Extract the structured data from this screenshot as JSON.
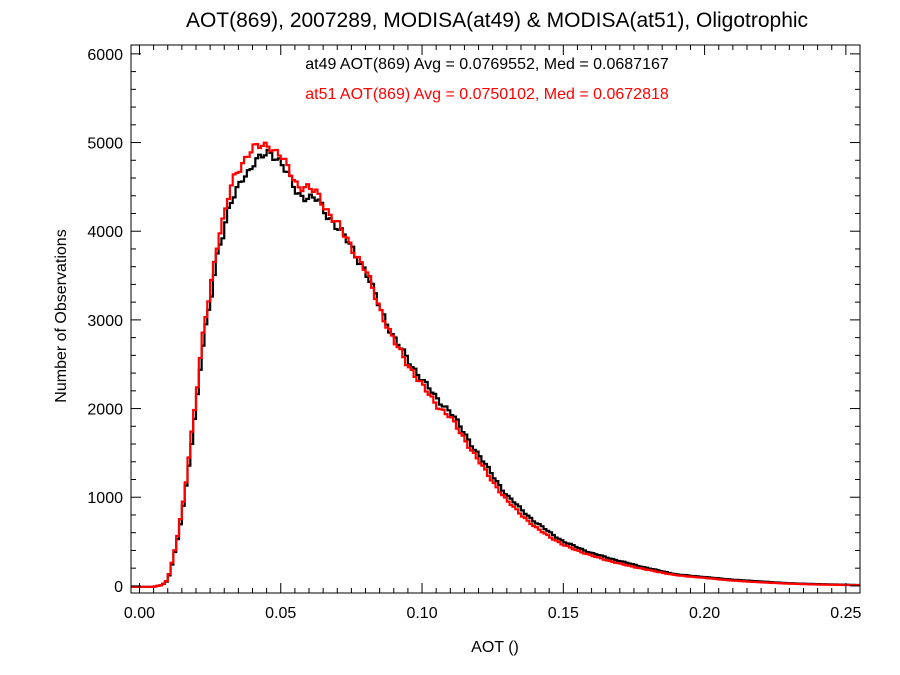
{
  "chart_data": {
    "type": "line",
    "title": "AOT(869), 2007289, MODISA(at49) & MODISA(at51), Oligotrophic",
    "xlabel": "AOT ()",
    "ylabel": "Number of Observations",
    "xlim": [
      -0.003,
      0.255
    ],
    "ylim": [
      -80,
      6100
    ],
    "x_ticks": [
      0.0,
      0.05,
      0.1,
      0.15,
      0.2,
      0.25
    ],
    "x_tick_labels": [
      "0.00",
      "0.05",
      "0.10",
      "0.15",
      "0.20",
      "0.25"
    ],
    "y_ticks": [
      0,
      1000,
      2000,
      3000,
      4000,
      5000,
      6000
    ],
    "y_tick_labels": [
      "0",
      "1000",
      "2000",
      "3000",
      "4000",
      "5000",
      "6000"
    ],
    "grid": false,
    "legend": "none",
    "annotations": [
      "at49 AOT(869) Avg = 0.0769552, Med = 0.0687167",
      "at51 AOT(869) Avg = 0.0750102, Med = 0.0672818"
    ],
    "series": [
      {
        "color": "#000000",
        "x": [
          -0.003,
          0.005,
          0.008,
          0.01,
          0.012,
          0.014,
          0.016,
          0.018,
          0.02,
          0.022,
          0.024,
          0.026,
          0.028,
          0.03,
          0.032,
          0.034,
          0.036,
          0.038,
          0.04,
          0.042,
          0.044,
          0.046,
          0.048,
          0.05,
          0.053,
          0.056,
          0.06,
          0.063,
          0.066,
          0.07,
          0.075,
          0.08,
          0.085,
          0.09,
          0.095,
          0.1,
          0.105,
          0.11,
          0.115,
          0.12,
          0.125,
          0.13,
          0.14,
          0.15,
          0.16,
          0.17,
          0.18,
          0.19,
          0.2,
          0.21,
          0.22,
          0.23,
          0.24,
          0.255
        ],
        "values": [
          -10,
          -10,
          10,
          60,
          300,
          600,
          1000,
          1500,
          2000,
          2600,
          3000,
          3400,
          3850,
          4000,
          4300,
          4400,
          4600,
          4650,
          4750,
          4800,
          4850,
          4900,
          4850,
          4780,
          4600,
          4420,
          4380,
          4350,
          4200,
          4050,
          3820,
          3550,
          3150,
          2800,
          2550,
          2330,
          2120,
          1970,
          1720,
          1480,
          1250,
          1020,
          720,
          500,
          370,
          280,
          200,
          130,
          100,
          70,
          50,
          30,
          20,
          10
        ]
      },
      {
        "color": "#ff0000",
        "x": [
          -0.003,
          0.005,
          0.008,
          0.01,
          0.012,
          0.014,
          0.016,
          0.018,
          0.02,
          0.022,
          0.024,
          0.026,
          0.028,
          0.03,
          0.032,
          0.034,
          0.036,
          0.038,
          0.04,
          0.042,
          0.044,
          0.046,
          0.048,
          0.05,
          0.053,
          0.056,
          0.06,
          0.063,
          0.066,
          0.07,
          0.075,
          0.08,
          0.085,
          0.09,
          0.095,
          0.1,
          0.105,
          0.11,
          0.115,
          0.12,
          0.125,
          0.13,
          0.14,
          0.15,
          0.16,
          0.17,
          0.18,
          0.19,
          0.2,
          0.21,
          0.22,
          0.23,
          0.24,
          0.255
        ],
        "values": [
          -10,
          -10,
          10,
          70,
          320,
          650,
          1050,
          1600,
          2100,
          2700,
          3150,
          3550,
          3950,
          4150,
          4450,
          4650,
          4750,
          4850,
          4920,
          4950,
          4970,
          4980,
          4900,
          4850,
          4680,
          4520,
          4480,
          4420,
          4260,
          4080,
          3830,
          3560,
          3140,
          2760,
          2500,
          2260,
          2050,
          1900,
          1660,
          1410,
          1180,
          960,
          660,
          460,
          340,
          250,
          180,
          120,
          90,
          60,
          40,
          25,
          15,
          8
        ]
      }
    ]
  }
}
